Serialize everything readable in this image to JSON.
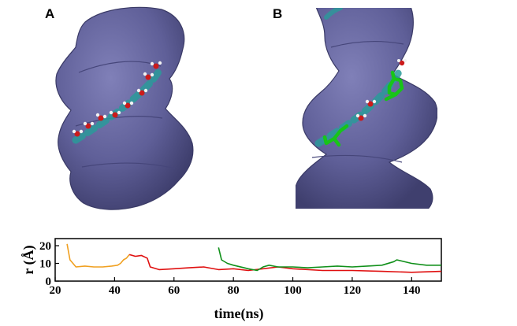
{
  "figure": {
    "panels": [
      {
        "label": "A"
      },
      {
        "label": "B"
      }
    ],
    "colors": {
      "surface": "#5f5f98",
      "surface_dark": "#3f3f6e",
      "groove": "#2a9a9a",
      "water_o": "#cc1b1b",
      "water_h": "#f2f2f2",
      "ligand": "#18c418"
    }
  },
  "chart_data": {
    "type": "line",
    "xlabel": "time(ns)",
    "ylabel": "r (Å)",
    "xlim": [
      20,
      150
    ],
    "ylim": [
      0,
      24
    ],
    "xticks": [
      20,
      40,
      60,
      80,
      100,
      120,
      140
    ],
    "yticks": [
      0,
      10,
      20
    ],
    "tick_labels_x": [
      "20",
      "40",
      "60",
      "80",
      "100",
      "120",
      "140"
    ],
    "tick_labels_y": [
      "0",
      "10",
      "20"
    ],
    "grid": false,
    "series": [
      {
        "color": "#f0a020",
        "x": [
          24,
          25,
          27,
          30,
          33,
          36,
          39,
          41,
          42,
          43,
          44,
          45
        ],
        "y": [
          21,
          12,
          8,
          8.5,
          8,
          8,
          8.5,
          9,
          10,
          12,
          13,
          15
        ]
      },
      {
        "color": "#e01010",
        "x": [
          45,
          47,
          49,
          51,
          52,
          55,
          60,
          65,
          70,
          75,
          80,
          85,
          90,
          95,
          100,
          110,
          120,
          130,
          140,
          150
        ],
        "y": [
          15,
          14,
          14.5,
          13,
          8,
          6.5,
          7,
          7.5,
          8,
          6.5,
          7,
          6,
          7,
          8,
          7,
          6,
          6,
          5.5,
          5,
          5.5
        ]
      },
      {
        "color": "#10901a",
        "x": [
          75,
          76,
          78,
          80,
          85,
          88,
          90,
          92,
          95,
          100,
          105,
          110,
          115,
          120,
          125,
          130,
          134,
          135,
          140,
          145,
          150
        ],
        "y": [
          19,
          12,
          10,
          9,
          7,
          6,
          8,
          9,
          8,
          8,
          7.5,
          8,
          8.5,
          8,
          8.5,
          9,
          11,
          12,
          10,
          9,
          9
        ]
      }
    ]
  }
}
